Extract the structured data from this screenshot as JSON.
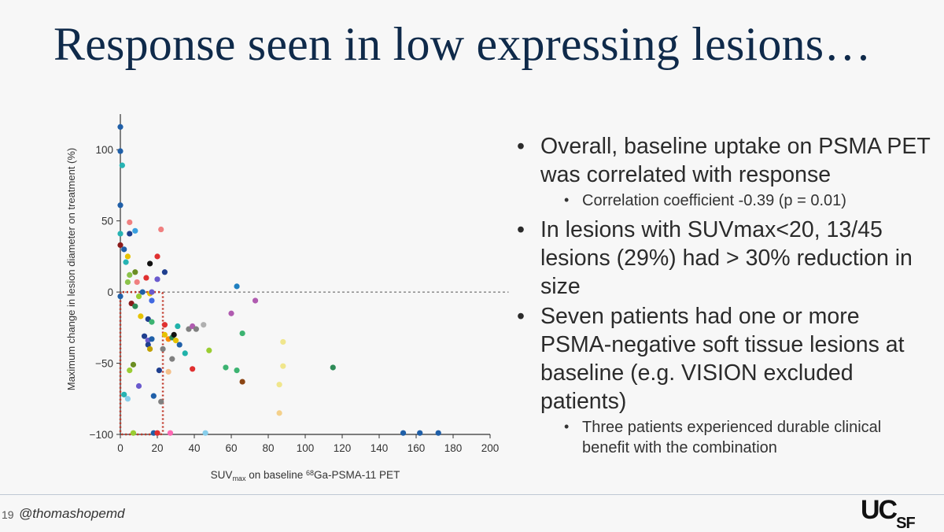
{
  "slide": {
    "title": "Response seen in low expressing lesions…",
    "slide_number": "19",
    "handle": "@thomashopemd",
    "logo": {
      "main": "UC",
      "sub": "SF"
    }
  },
  "bullets": [
    {
      "level": 1,
      "text": "Overall, baseline uptake on PSMA PET was correlated with response"
    },
    {
      "level": 2,
      "text": "Correlation coefficient -0.39 (p = 0.01)"
    },
    {
      "level": 1,
      "text": "In lesions with SUVmax<20, 13/45 lesions (29%) had > 30% reduction in size"
    },
    {
      "level": 1,
      "text": "Seven patients had one or more PSMA-negative soft tissue lesions at baseline (e.g. VISION excluded patients)"
    },
    {
      "level": 2,
      "text": "Three patients experienced durable clinical benefit with the combination"
    }
  ],
  "chart_data": {
    "type": "scatter",
    "ylabel": "Maximum change in lesion diameter on treatment (%)",
    "xlabel_parts": [
      "SUV",
      "max",
      " on baseline ",
      "68",
      "Ga-PSMA-11 PET"
    ],
    "xlim": [
      0,
      200
    ],
    "ylim": [
      -100,
      125
    ],
    "xticks": [
      0,
      20,
      40,
      60,
      80,
      100,
      120,
      140,
      160,
      180,
      200
    ],
    "yticks": [
      -100,
      -50,
      0,
      50,
      100
    ],
    "zero_line": true,
    "highlight_box": {
      "x": [
        0,
        23
      ],
      "y": [
        -100,
        0
      ],
      "color": "#c0392b"
    },
    "points": [
      {
        "x": 0,
        "y": 116,
        "c": "#1f5fa8"
      },
      {
        "x": 0,
        "y": 99,
        "c": "#1f5fa8"
      },
      {
        "x": 1,
        "y": 89,
        "c": "#26b3b3"
      },
      {
        "x": 0,
        "y": 61,
        "c": "#1f5fa8"
      },
      {
        "x": 0,
        "y": 41,
        "c": "#26b3b3"
      },
      {
        "x": 5,
        "y": 49,
        "c": "#f08080"
      },
      {
        "x": 8,
        "y": 43,
        "c": "#3aa0e0"
      },
      {
        "x": 5,
        "y": 41,
        "c": "#1f3f8f"
      },
      {
        "x": 22,
        "y": 44,
        "c": "#f08080"
      },
      {
        "x": 0,
        "y": 33,
        "c": "#8b1a1a"
      },
      {
        "x": 2,
        "y": 30,
        "c": "#1f5fa8"
      },
      {
        "x": 4,
        "y": 25,
        "c": "#e6c200"
      },
      {
        "x": 3,
        "y": 21,
        "c": "#26b3b3"
      },
      {
        "x": 16,
        "y": 20,
        "c": "#111111"
      },
      {
        "x": 20,
        "y": 25,
        "c": "#e03030"
      },
      {
        "x": 24,
        "y": 14,
        "c": "#1f3f8f"
      },
      {
        "x": 8,
        "y": 14,
        "c": "#6b8e23"
      },
      {
        "x": 5,
        "y": 12,
        "c": "#8bc34a"
      },
      {
        "x": 14,
        "y": 10,
        "c": "#e03030"
      },
      {
        "x": 4,
        "y": 7,
        "c": "#8bc34a"
      },
      {
        "x": 9,
        "y": 7,
        "c": "#f08080"
      },
      {
        "x": 20,
        "y": 9,
        "c": "#6a5acd"
      },
      {
        "x": 63,
        "y": 4,
        "c": "#1f7fc0"
      },
      {
        "x": 0,
        "y": -3,
        "c": "#1f5fa8"
      },
      {
        "x": 10,
        "y": -3,
        "c": "#9acd32"
      },
      {
        "x": 12,
        "y": 0,
        "c": "#1f5fa8"
      },
      {
        "x": 16,
        "y": -1,
        "c": "#e6c200"
      },
      {
        "x": 17,
        "y": 0,
        "c": "#6a5acd"
      },
      {
        "x": 17,
        "y": -6,
        "c": "#4169e1"
      },
      {
        "x": 73,
        "y": -6,
        "c": "#b05bb0"
      },
      {
        "x": 6,
        "y": -8,
        "c": "#8b1a1a"
      },
      {
        "x": 8,
        "y": -10,
        "c": "#2e8b57"
      },
      {
        "x": 11,
        "y": -17,
        "c": "#e6c200"
      },
      {
        "x": 15,
        "y": -19,
        "c": "#1f3f8f"
      },
      {
        "x": 17,
        "y": -21,
        "c": "#3cb371"
      },
      {
        "x": 24,
        "y": -23,
        "c": "#e03030"
      },
      {
        "x": 31,
        "y": -24,
        "c": "#20b2aa"
      },
      {
        "x": 37,
        "y": -26,
        "c": "#808080"
      },
      {
        "x": 39,
        "y": -24,
        "c": "#b05bb0"
      },
      {
        "x": 41,
        "y": -26,
        "c": "#808080"
      },
      {
        "x": 45,
        "y": -23,
        "c": "#b0b0b0"
      },
      {
        "x": 60,
        "y": -15,
        "c": "#b05bb0"
      },
      {
        "x": 66,
        "y": -29,
        "c": "#3cb371"
      },
      {
        "x": 13,
        "y": -31,
        "c": "#1f3f8f"
      },
      {
        "x": 15,
        "y": -34,
        "c": "#6a5acd"
      },
      {
        "x": 17,
        "y": -33,
        "c": "#1f5fa8"
      },
      {
        "x": 24,
        "y": -30,
        "c": "#e6c200"
      },
      {
        "x": 26,
        "y": -33,
        "c": "#ff8c00"
      },
      {
        "x": 28,
        "y": -32,
        "c": "#2e8b57"
      },
      {
        "x": 29,
        "y": -30,
        "c": "#111111"
      },
      {
        "x": 30,
        "y": -34,
        "c": "#e6c200"
      },
      {
        "x": 32,
        "y": -37,
        "c": "#1f5fa8"
      },
      {
        "x": 35,
        "y": -43,
        "c": "#20b2aa"
      },
      {
        "x": 88,
        "y": -35,
        "c": "#f0e68c"
      },
      {
        "x": 15,
        "y": -37,
        "c": "#1f3f8f"
      },
      {
        "x": 16,
        "y": -40,
        "c": "#c0a000"
      },
      {
        "x": 23,
        "y": -40,
        "c": "#808080"
      },
      {
        "x": 48,
        "y": -41,
        "c": "#9acd32"
      },
      {
        "x": 28,
        "y": -47,
        "c": "#808080"
      },
      {
        "x": 7,
        "y": -51,
        "c": "#6b8e23"
      },
      {
        "x": 21,
        "y": -55,
        "c": "#1f3f8f"
      },
      {
        "x": 26,
        "y": -56,
        "c": "#f4c08a"
      },
      {
        "x": 39,
        "y": -54,
        "c": "#e03030"
      },
      {
        "x": 57,
        "y": -53,
        "c": "#3cb371"
      },
      {
        "x": 63,
        "y": -55,
        "c": "#3cb371"
      },
      {
        "x": 88,
        "y": -52,
        "c": "#f0e68c"
      },
      {
        "x": 115,
        "y": -53,
        "c": "#2e8b57"
      },
      {
        "x": 5,
        "y": -55,
        "c": "#9acd32"
      },
      {
        "x": 10,
        "y": -66,
        "c": "#6a5acd"
      },
      {
        "x": 66,
        "y": -63,
        "c": "#8b4513"
      },
      {
        "x": 86,
        "y": -65,
        "c": "#f0e68c"
      },
      {
        "x": 2,
        "y": -72,
        "c": "#26b3b3"
      },
      {
        "x": 4,
        "y": -75,
        "c": "#87ceeb"
      },
      {
        "x": 18,
        "y": -73,
        "c": "#1f5fa8"
      },
      {
        "x": 22,
        "y": -77,
        "c": "#808080"
      },
      {
        "x": 86,
        "y": -85,
        "c": "#f4d08a"
      },
      {
        "x": 7,
        "y": -99,
        "c": "#9acd32"
      },
      {
        "x": 18,
        "y": -99,
        "c": "#1f5fa8"
      },
      {
        "x": 20,
        "y": -99,
        "c": "#e03030"
      },
      {
        "x": 27,
        "y": -99,
        "c": "#ff69b4"
      },
      {
        "x": 46,
        "y": -99,
        "c": "#87ceeb"
      },
      {
        "x": 153,
        "y": -99,
        "c": "#1f5fa8"
      },
      {
        "x": 162,
        "y": -99,
        "c": "#1f5fa8"
      },
      {
        "x": 172,
        "y": -99,
        "c": "#1f5fa8"
      }
    ]
  }
}
